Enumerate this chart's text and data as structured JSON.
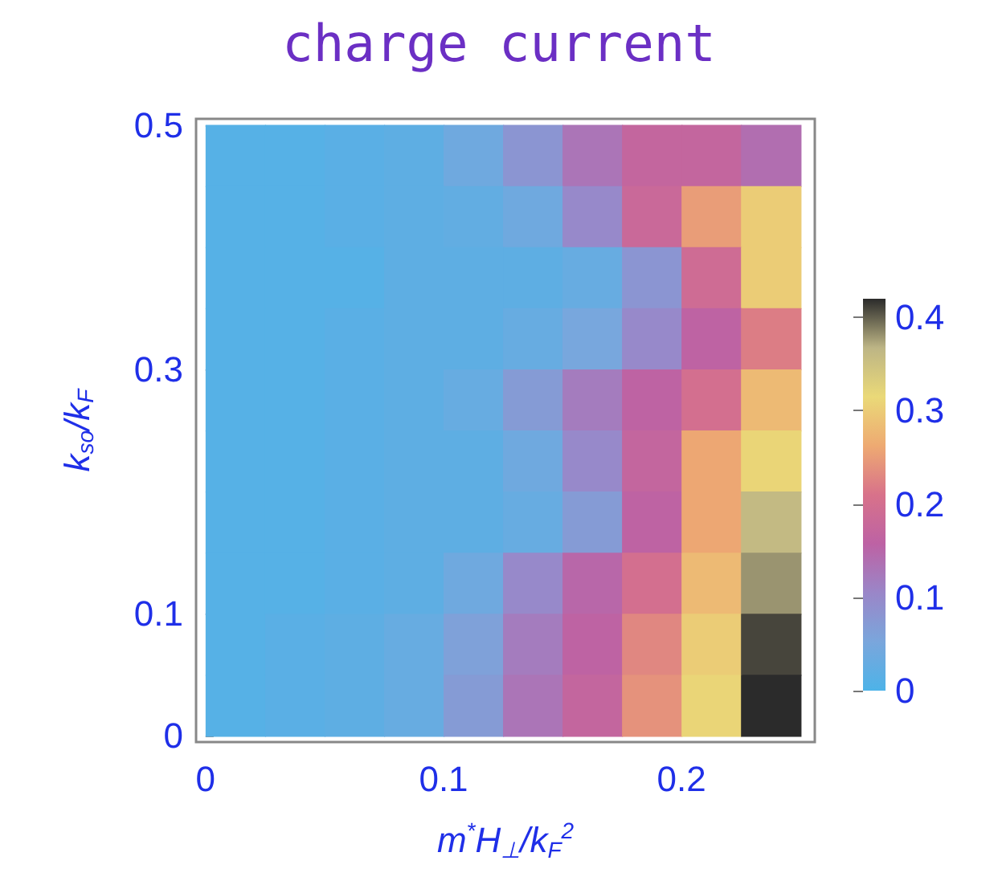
{
  "chart_data": {
    "type": "heatmap",
    "title": "charge current",
    "xlabel": "m$^{*}$H$_{⊥}$/k$_{F}$$^{2}$",
    "ylabel": "k$_{so}$/k$_{F}$",
    "x": [
      0.0125,
      0.0375,
      0.0625,
      0.0875,
      0.1125,
      0.1375,
      0.1625,
      0.1875,
      0.2125,
      0.2375
    ],
    "y": [
      0.475,
      0.425,
      0.375,
      0.325,
      0.275,
      0.225,
      0.175,
      0.125,
      0.075,
      0.025
    ],
    "cells": [
      [
        0.01,
        0.01,
        0.015,
        0.02,
        0.04,
        0.08,
        0.13,
        0.17,
        0.17,
        0.14
      ],
      [
        0.01,
        0.01,
        0.015,
        0.02,
        0.025,
        0.04,
        0.1,
        0.18,
        0.25,
        0.3
      ],
      [
        0.01,
        0.01,
        0.01,
        0.02,
        0.02,
        0.02,
        0.03,
        0.08,
        0.19,
        0.3
      ],
      [
        0.01,
        0.01,
        0.015,
        0.02,
        0.02,
        0.03,
        0.05,
        0.1,
        0.16,
        0.22
      ],
      [
        0.01,
        0.01,
        0.015,
        0.02,
        0.03,
        0.07,
        0.12,
        0.16,
        0.2,
        0.28
      ],
      [
        0.01,
        0.01,
        0.015,
        0.02,
        0.02,
        0.04,
        0.1,
        0.17,
        0.26,
        0.31
      ],
      [
        0.01,
        0.01,
        0.015,
        0.02,
        0.02,
        0.03,
        0.07,
        0.16,
        0.26,
        0.36
      ],
      [
        0.01,
        0.01,
        0.015,
        0.02,
        0.04,
        0.1,
        0.15,
        0.2,
        0.28,
        0.38
      ],
      [
        0.01,
        0.015,
        0.02,
        0.03,
        0.06,
        0.12,
        0.16,
        0.23,
        0.3,
        0.41
      ],
      [
        0.01,
        0.015,
        0.02,
        0.03,
        0.07,
        0.13,
        0.17,
        0.24,
        0.31,
        0.42
      ]
    ],
    "xlim": [
      -0.004,
      0.256
    ],
    "ylim": [
      -0.005,
      0.505
    ],
    "xticks": [
      0,
      0.1,
      0.2
    ],
    "yticks": [
      0,
      0.1,
      0.3,
      0.5
    ],
    "clim": [
      0,
      0.42
    ],
    "cticks": [
      0,
      0.1,
      0.2,
      0.3,
      0.4
    ],
    "grid": false
  }
}
